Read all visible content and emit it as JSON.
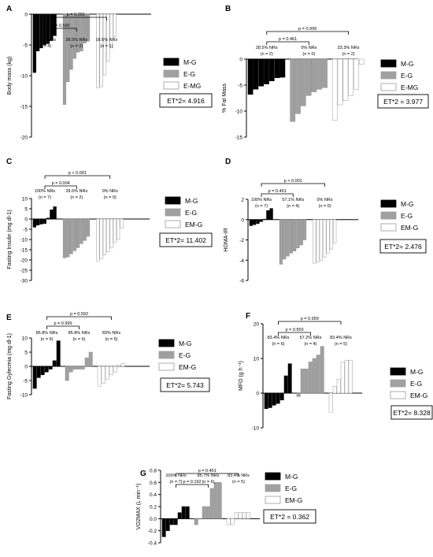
{
  "chart_data": [
    {
      "type": "bar",
      "panel": "A",
      "ylabel": "Body mass (kg)",
      "ylim": [
        -20,
        0
      ],
      "yticks": [
        0,
        -5,
        -10,
        -15,
        -20
      ],
      "groups": [
        {
          "name": "M-G",
          "color": "#000000",
          "values": [
            -9.5,
            -6.0,
            -5.5,
            -5.0,
            -4.8,
            -4.3,
            -3.5
          ]
        },
        {
          "name": "E-G",
          "color": "#a0a0a0",
          "values": [
            -14.7,
            -11.0,
            -9.0,
            -7.2,
            -6.2,
            -6.0,
            -4.7,
            -4.4
          ]
        },
        {
          "name": "E-MG",
          "color": "#ffffff",
          "values": [
            -12.0,
            -11.8,
            -9.9,
            -7.7,
            -5.5,
            -3.7
          ]
        }
      ],
      "nr_labels": [
        {
          "label": "57.1% NRs",
          "n": "(n = 4)"
        },
        {
          "label": "28.5% NRs",
          "n": "(n = 2)"
        },
        {
          "label": "16.6% NRs",
          "n": "(n = 1)"
        }
      ],
      "brackets": [
        {
          "from": 0,
          "to": 2,
          "text": "p = 0.265"
        },
        {
          "from": 0,
          "to": 1,
          "text": "p = 0.592"
        }
      ],
      "et_label": "ET*2= 4.916"
    },
    {
      "type": "bar",
      "panel": "B",
      "ylabel": "% Fat Mass",
      "ylim": [
        -15,
        0
      ],
      "yticks": [
        0,
        -5,
        -10,
        -15
      ],
      "groups": [
        {
          "name": "M-G",
          "color": "#000000",
          "values": [
            -6.8,
            -5.8,
            -5.2,
            -4.8,
            -4.2,
            -3.6,
            -3.5
          ]
        },
        {
          "name": "E-G",
          "color": "#a0a0a0",
          "values": [
            -12.0,
            -10.5,
            -9.0,
            -7.0,
            -6.3,
            -5.8,
            -5.5
          ]
        },
        {
          "name": "E-MG",
          "color": "#ffffff",
          "values": [
            -11.8,
            -8.8,
            -8.0,
            -7.0,
            -5.8,
            -1.0
          ]
        }
      ],
      "nr_labels": [
        {
          "label": "28.5% NRs",
          "n": "(n = 2)"
        },
        {
          "label": "0% NRs",
          "n": "(n = 0)"
        },
        {
          "label": "33.3% NRs",
          "n": "(n = 2)"
        }
      ],
      "brackets": [
        {
          "from": 0,
          "to": 2,
          "text": "p = 0.999"
        },
        {
          "from": 0,
          "to": 1,
          "text": "p = 0.461"
        }
      ],
      "et_label": "ET*2 = 3.977"
    },
    {
      "type": "bar",
      "panel": "C",
      "ylabel": "Fasting Insulin (mg dl-1)",
      "ylim": [
        -30,
        10
      ],
      "yticks": [
        10,
        5,
        0,
        -5,
        -10,
        -15,
        -20,
        -25,
        -30
      ],
      "groups": [
        {
          "name": "M-G",
          "color": "#000000",
          "values": [
            -4.0,
            -3.0,
            -2.5,
            -2.2,
            0.5,
            4.5,
            6.0
          ]
        },
        {
          "name": "E-G",
          "color": "#a0a0a0",
          "values": [
            -19.0,
            -18.5,
            -17.0,
            -15.5,
            -14.0,
            -12.0,
            -10.5,
            -8.5
          ]
        },
        {
          "name": "EM-G",
          "color": "#ffffff",
          "values": [
            -20.5,
            -19.5,
            -17.5,
            -16.0,
            -14.0,
            -11.5,
            -10.0,
            -4.5
          ]
        }
      ],
      "nr_labels": [
        {
          "label": "100% NRs",
          "n": "(n = 7)"
        },
        {
          "label": "28.6% NRs",
          "n": "(n = 2)"
        },
        {
          "label": "0% NRs",
          "n": "(n = 0)"
        }
      ],
      "brackets": [
        {
          "from": 0,
          "to": 2,
          "text": "p < 0.001"
        },
        {
          "from": 0,
          "to": 1,
          "text": "p = 0.004"
        }
      ],
      "et_label": "ET*2= 11.402"
    },
    {
      "type": "bar",
      "panel": "D",
      "ylabel": "HOMA-IR",
      "ylim": [
        -6,
        2
      ],
      "yticks": [
        2,
        0,
        -2,
        -4,
        -6
      ],
      "groups": [
        {
          "name": "M-G",
          "color": "#000000",
          "values": [
            -0.6,
            -0.5,
            -0.4,
            -0.2,
            0.05,
            0.9,
            1.1
          ]
        },
        {
          "name": "E-G",
          "color": "#a0a0a0",
          "values": [
            -4.4,
            -3.9,
            -3.6,
            -3.3,
            -3.1,
            -2.8,
            -2.5,
            -2.0
          ]
        },
        {
          "name": "EM-G",
          "color": "#ffffff",
          "values": [
            -4.3,
            -4.2,
            -4.0,
            -3.7,
            -3.3,
            -2.9,
            -2.3
          ]
        }
      ],
      "nr_labels": [
        {
          "label": "100% NRs",
          "n": "(n = 7)"
        },
        {
          "label": "57.1% NRs",
          "n": "(n = 4)"
        },
        {
          "label": "0% NRs",
          "n": "(n = 0)"
        }
      ],
      "brackets": [
        {
          "from": 0,
          "to": 2,
          "text": "p < 0.001"
        },
        {
          "from": 0,
          "to": 1,
          "text": "p = 0.461"
        }
      ],
      "et_label": "ET*2= 2.476"
    },
    {
      "type": "bar",
      "panel": "E",
      "ylabel": "Fasting Gylecmia (mg dl-1)",
      "ylim": [
        -10,
        10
      ],
      "yticks": [
        10,
        5,
        0,
        -5,
        -10
      ],
      "groups": [
        {
          "name": "M-G",
          "color": "#000000",
          "values": [
            -7.8,
            -4.0,
            -3.0,
            -2.0,
            -1.0,
            2.0,
            9.0
          ]
        },
        {
          "name": "E-G",
          "color": "#a0a0a0",
          "values": [
            -5.0,
            -2.0,
            -1.0,
            -1.0,
            -1.0,
            3.0,
            5.0
          ]
        },
        {
          "name": "EM-G",
          "color": "#ffffff",
          "values": [
            -7.0,
            -6.0,
            -4.5,
            -3.0,
            -2.0,
            0.5,
            1.0
          ]
        }
      ],
      "nr_labels": [
        {
          "label": "85.8% NRs",
          "n": "(n = 6)"
        },
        {
          "label": "85.8% NRs",
          "n": "(n = 6)"
        },
        {
          "label": "83% NRs",
          "n": "(n = 5)"
        }
      ],
      "brackets": [
        {
          "from": 0,
          "to": 2,
          "text": "p = 0.592"
        },
        {
          "from": 0,
          "to": 1,
          "text": "p = 0.999"
        }
      ],
      "et_label": "ET*2= 5.743"
    },
    {
      "type": "bar",
      "panel": "F",
      "ylabel": "MFO (g h⁻¹)",
      "ylim": [
        -10,
        20
      ],
      "yticks": [
        20,
        10,
        0,
        -10
      ],
      "groups": [
        {
          "name": "M-G",
          "color": "#000000",
          "values": [
            -4.5,
            -4.2,
            -3.5,
            -3.0,
            -2.0,
            5.0,
            8.5
          ]
        },
        {
          "name": "E-G",
          "color": "#a0a0a0",
          "values": [
            -1.0,
            7.0,
            7.0,
            9.0,
            10.0,
            11.0,
            13.5
          ]
        },
        {
          "name": "EM-G",
          "color": "#ffffff",
          "values": [
            -5.5,
            2.0,
            4.0,
            9.0,
            9.5,
            9.5
          ]
        }
      ],
      "nr_labels": [
        {
          "label": "83.4% NRs",
          "n": "(n = 6)"
        },
        {
          "label": "57.2% NRs",
          "n": "(n = 4)"
        },
        {
          "label": "83.4% NRs",
          "n": "(n = 5)"
        }
      ],
      "brackets": [
        {
          "from": 0,
          "to": 2,
          "text": "p = 0.999"
        },
        {
          "from": 0,
          "to": 1,
          "text": "p = 0.559"
        }
      ],
      "et_label": "ET*2= 8.328"
    },
    {
      "type": "bar",
      "panel": "G",
      "ylabel": "VO2MAX (L min⁻¹)",
      "ylim": [
        -0.4,
        0.8
      ],
      "yticks": [
        0.8,
        0.6,
        0.4,
        0.2,
        0.0,
        -0.2,
        -0.4
      ],
      "groups": [
        {
          "name": "M-G",
          "color": "#000000",
          "values": [
            -0.3,
            -0.2,
            -0.1,
            -0.1,
            0.1,
            0.2,
            0.2
          ]
        },
        {
          "name": "E-G",
          "color": "#a0a0a0",
          "values": [
            -0.1,
            0.0,
            0.2,
            0.2,
            0.5,
            0.6,
            0.6
          ]
        },
        {
          "name": "EM-G",
          "color": "#ffffff",
          "values": [
            -0.1,
            -0.1,
            0.1,
            0.1,
            0.1,
            0.1
          ]
        }
      ],
      "nr_labels": [
        {
          "label": "100% NRs",
          "n": "(n = 7)"
        },
        {
          "label": "85.7% NRs",
          "n": "(n = 6)"
        },
        {
          "label": "83.4% NRs",
          "n": "(n = 5)"
        }
      ],
      "brackets": [
        {
          "from": 0,
          "to": 2,
          "text": "p = 0.461"
        },
        {
          "from": 0,
          "to": 1,
          "text": "p = 0.192"
        }
      ],
      "et_label": "ET*2 = 0.362"
    }
  ]
}
